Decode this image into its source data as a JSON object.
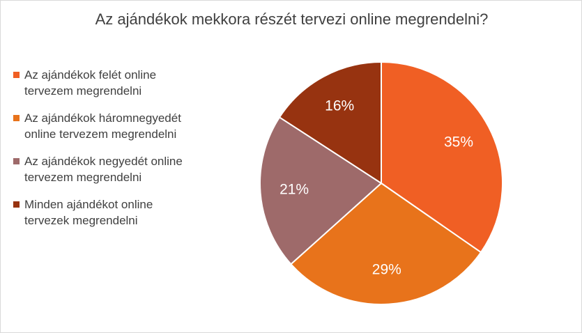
{
  "chart_data": {
    "type": "pie",
    "title": "Az ajándékok mekkora részét tervezi online megrendelni?",
    "categories": [
      "Az ajándékok felét online tervezem megrendelni",
      "Az ajándékok háromnegyedét online tervezem megrendelni",
      "Az ajándékok negyedét online tervezem megrendelni",
      "Minden ajándékot online tervezek megrendelni"
    ],
    "values": [
      35,
      29,
      21,
      16
    ],
    "value_labels": [
      "35%",
      "29%",
      "21%",
      "16%"
    ],
    "colors": [
      "#f05f24",
      "#e8731b",
      "#9e6a6a",
      "#973310"
    ],
    "legend": "left"
  }
}
